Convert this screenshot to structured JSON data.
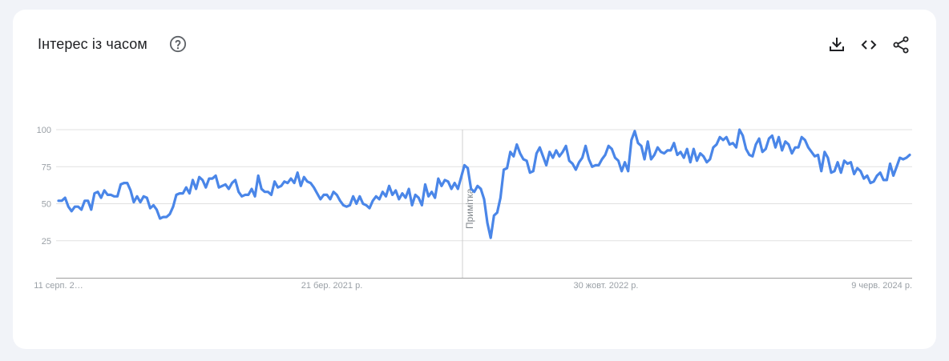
{
  "header": {
    "title": "Інтерес із часом",
    "help_icon": "help-circle-icon",
    "actions": [
      {
        "name": "download-button",
        "icon": "download-icon"
      },
      {
        "name": "embed-button",
        "icon": "code-icon"
      },
      {
        "name": "share-button",
        "icon": "share-icon"
      }
    ]
  },
  "colors": {
    "line": "#4a86e8",
    "grid": "#e0e0e0",
    "axis": "#9e9e9e",
    "text": "#202124",
    "tick": "#9aa0a6"
  },
  "chart_data": {
    "type": "line",
    "title": "Інтерес із часом",
    "xlabel": "",
    "ylabel": "",
    "ylim": [
      0,
      100
    ],
    "yticks": [
      25,
      50,
      75,
      100
    ],
    "xtick_labels": [
      "11 серп. 2…",
      "21 бер. 2021 р.",
      "30 жовт. 2022 р.",
      "9 черв. 2024 р."
    ],
    "annotation": "Примітка",
    "grid": true,
    "series": [
      {
        "name": "",
        "values": [
          52,
          52,
          54,
          48,
          45,
          48,
          48,
          46,
          52,
          52,
          46,
          57,
          58,
          54,
          59,
          56,
          56,
          55,
          55,
          63,
          64,
          64,
          59,
          51,
          55,
          51,
          55,
          54,
          47,
          49,
          46,
          40,
          41,
          41,
          43,
          48,
          56,
          57,
          57,
          61,
          57,
          66,
          60,
          68,
          66,
          61,
          67,
          67,
          69,
          61,
          62,
          63,
          60,
          64,
          66,
          58,
          55,
          56,
          56,
          60,
          55,
          69,
          60,
          58,
          58,
          56,
          65,
          61,
          62,
          65,
          64,
          67,
          64,
          71,
          62,
          68,
          65,
          64,
          61,
          57,
          53,
          56,
          56,
          53,
          58,
          56,
          52,
          49,
          48,
          49,
          55,
          50,
          55,
          50,
          49,
          47,
          52,
          55,
          53,
          58,
          55,
          62,
          56,
          59,
          53,
          57,
          54,
          60,
          49,
          56,
          54,
          49,
          63,
          55,
          58,
          54,
          67,
          62,
          66,
          65,
          60,
          64,
          60,
          68,
          76,
          74,
          60,
          58,
          62,
          60,
          53,
          37,
          27,
          42,
          44,
          54,
          73,
          74,
          85,
          82,
          90,
          84,
          80,
          79,
          71,
          72,
          84,
          88,
          82,
          76,
          85,
          81,
          86,
          82,
          85,
          89,
          79,
          77,
          73,
          78,
          81,
          89,
          80,
          75,
          76,
          76,
          80,
          83,
          89,
          87,
          81,
          79,
          72,
          78,
          72,
          93,
          99,
          91,
          89,
          80,
          92,
          80,
          83,
          88,
          85,
          84,
          86,
          86,
          91,
          83,
          85,
          81,
          87,
          78,
          87,
          79,
          84,
          82,
          78,
          80,
          88,
          90,
          95,
          93,
          95,
          90,
          91,
          88,
          100,
          96,
          87,
          83,
          82,
          90,
          94,
          85,
          87,
          94,
          96,
          88,
          95,
          86,
          92,
          90,
          84,
          88,
          88,
          95,
          93,
          88,
          85,
          82,
          83,
          72,
          85,
          81,
          71,
          72,
          78,
          71,
          79,
          77,
          78,
          70,
          74,
          72,
          67,
          69,
          64,
          65,
          69,
          71,
          66,
          66,
          77,
          69,
          75,
          81,
          80,
          81,
          83
        ]
      }
    ]
  }
}
